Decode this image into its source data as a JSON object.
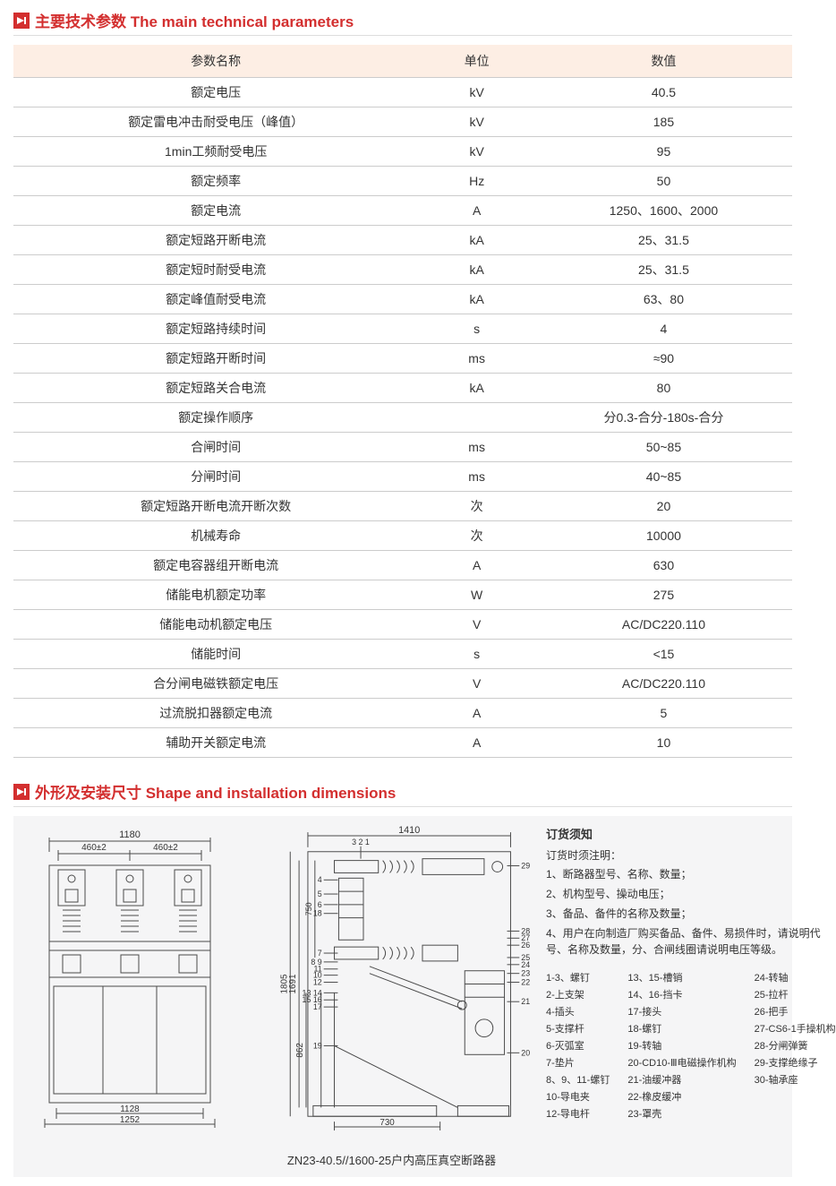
{
  "section1": {
    "title": "主要技术参数 The main technical parameters"
  },
  "section2": {
    "title": "外形及安装尺寸 Shape and installation dimensions"
  },
  "table": {
    "header": {
      "name": "参数名称",
      "unit": "单位",
      "value": "数值"
    },
    "rows": [
      {
        "name": "额定电压",
        "unit": "kV",
        "value": "40.5"
      },
      {
        "name": "额定雷电冲击耐受电压（峰值）",
        "unit": "kV",
        "value": "185"
      },
      {
        "name": "1min工频耐受电压",
        "unit": "kV",
        "value": "95"
      },
      {
        "name": "额定频率",
        "unit": "Hz",
        "value": "50"
      },
      {
        "name": "额定电流",
        "unit": "A",
        "value": "1250、1600、2000"
      },
      {
        "name": "额定短路开断电流",
        "unit": "kA",
        "value": "25、31.5"
      },
      {
        "name": "额定短时耐受电流",
        "unit": "kA",
        "value": "25、31.5"
      },
      {
        "name": "额定峰值耐受电流",
        "unit": "kA",
        "value": "63、80"
      },
      {
        "name": "额定短路持续时间",
        "unit": "s",
        "value": "4"
      },
      {
        "name": "额定短路开断时间",
        "unit": "ms",
        "value": "≈90"
      },
      {
        "name": "额定短路关合电流",
        "unit": "kA",
        "value": "80"
      },
      {
        "name": "额定操作顺序",
        "unit": "",
        "value": "分0.3-合分-180s-合分"
      },
      {
        "name": "合闸时间",
        "unit": "ms",
        "value": "50~85"
      },
      {
        "name": "分闸时间",
        "unit": "ms",
        "value": "40~85"
      },
      {
        "name": "额定短路开断电流开断次数",
        "unit": "次",
        "value": "20"
      },
      {
        "name": "机械寿命",
        "unit": "次",
        "value": "10000"
      },
      {
        "name": "额定电容器组开断电流",
        "unit": "A",
        "value": "630"
      },
      {
        "name": "储能电机额定功率",
        "unit": "W",
        "value": "275"
      },
      {
        "name": "储能电动机额定电压",
        "unit": "V",
        "value": "AC/DC220.110"
      },
      {
        "name": "储能时间",
        "unit": "s",
        "value": "<15"
      },
      {
        "name": "合分闸电磁铁额定电压",
        "unit": "V",
        "value": "AC/DC220.110"
      },
      {
        "name": "过流脱扣器额定电流",
        "unit": "A",
        "value": "5"
      },
      {
        "name": "辅助开关额定电流",
        "unit": "A",
        "value": "10"
      }
    ]
  },
  "dims": {
    "front": {
      "w1180": "1180",
      "w460a": "460±2",
      "w460b": "460±2",
      "w1128": "1128",
      "w1252": "1252"
    },
    "side": {
      "w1410": "1410",
      "h1805": "1805",
      "h1691": "1691",
      "h862": "862",
      "h750": "750",
      "w730": "730"
    },
    "leaders_left": [
      "4",
      "5",
      "6",
      "18",
      "7",
      "8  9",
      "11",
      "10",
      "12",
      "13 14",
      "15 16",
      "17",
      "19"
    ],
    "leaders_top": [
      "3 2 1"
    ],
    "leaders_right": [
      "29",
      "28",
      "27",
      "26",
      "25",
      "24",
      "23",
      "22",
      "21",
      "20"
    ],
    "caption": "ZN23-40.5//1600-25户内高压真空断路器"
  },
  "order": {
    "title": "订货须知",
    "subtitle": "订货时须注明：",
    "items": [
      "1、断路器型号、名称、数量；",
      "2、机构型号、操动电压；",
      "3、备品、备件的名称及数量；",
      "4、用户在向制造厂购买备品、备件、易损件时，请说明代号、名称及数量，分、合闸线圈请说明电压等级。"
    ]
  },
  "parts": {
    "col1": [
      "1-3、螺钉",
      "2-上支架",
      "4-插头",
      "5-支撑杆",
      "6-灭弧室",
      "7-垫片",
      "8、9、11-螺钉",
      "10-导电夹",
      "12-导电杆"
    ],
    "col2": [
      "13、15-槽销",
      "14、16-挡卡",
      "17-接头",
      "18-螺钉",
      "19-转轴",
      "20-CD10-Ⅲ电磁操作机构",
      "21-油缓冲器",
      "22-橡皮缓冲",
      "23-罩壳"
    ],
    "col3": [
      "24-转轴",
      "25-拉杆",
      "26-把手",
      "27-CS6-1手操机构",
      "28-分闸弹簧",
      "29-支撑绝缘子",
      "30-轴承座"
    ]
  },
  "colors": {
    "accent": "#d32f2f",
    "header_bg": "#fdeee4",
    "border": "#cccccc",
    "dim_bg": "#f5f5f6",
    "stroke": "#4a4a4a"
  }
}
